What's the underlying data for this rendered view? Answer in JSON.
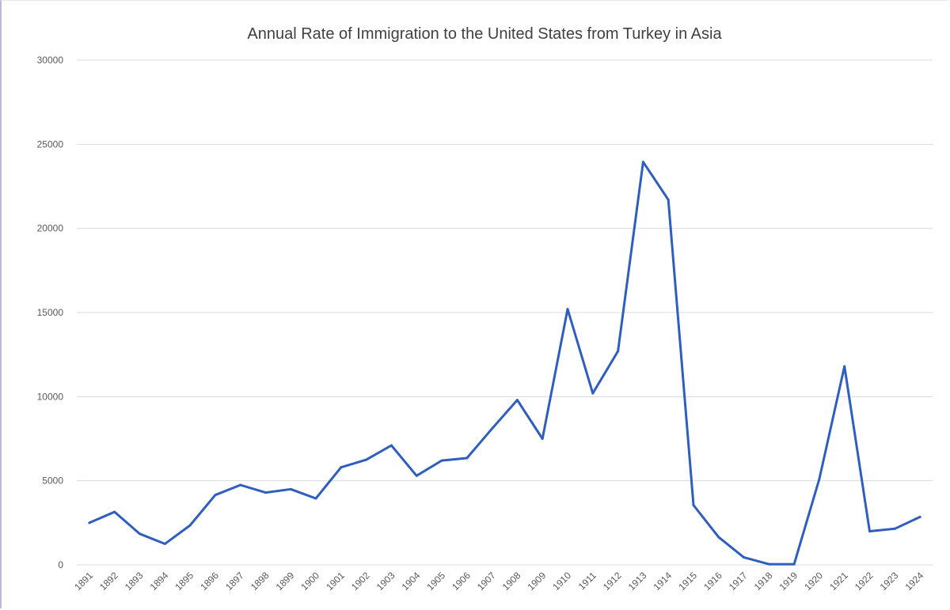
{
  "chart_data": {
    "type": "line",
    "title": "Annual Rate of Immigration to the United States from Turkey in Asia",
    "xlabel": "",
    "ylabel": "",
    "ylim": [
      0,
      30000
    ],
    "yticks": [
      "0",
      "5000",
      "10000",
      "15000",
      "20000",
      "25000",
      "30000"
    ],
    "grid": true,
    "legend": "none",
    "categories": [
      "1891",
      "1892",
      "1893",
      "1894",
      "1895",
      "1896",
      "1897",
      "1898",
      "1899",
      "1900",
      "1901",
      "1902",
      "1903",
      "1904",
      "1905",
      "1906",
      "1907",
      "1908",
      "1909",
      "1910",
      "1911",
      "1912",
      "1913",
      "1914",
      "1915",
      "1916",
      "1917",
      "1918",
      "1919",
      "1920",
      "1921",
      "1922",
      "1923",
      "1924"
    ],
    "series": [
      {
        "color": "#2f5ebd",
        "values": [
          2500,
          3150,
          1850,
          1250,
          2350,
          4150,
          4750,
          4300,
          4500,
          3950,
          5800,
          6250,
          7100,
          5300,
          6200,
          6350,
          8100,
          9800,
          7500,
          15200,
          10200,
          12700,
          23950,
          21700,
          3550,
          1650,
          450,
          40,
          40,
          5100,
          11800,
          2000,
          2150,
          2850
        ]
      }
    ]
  }
}
